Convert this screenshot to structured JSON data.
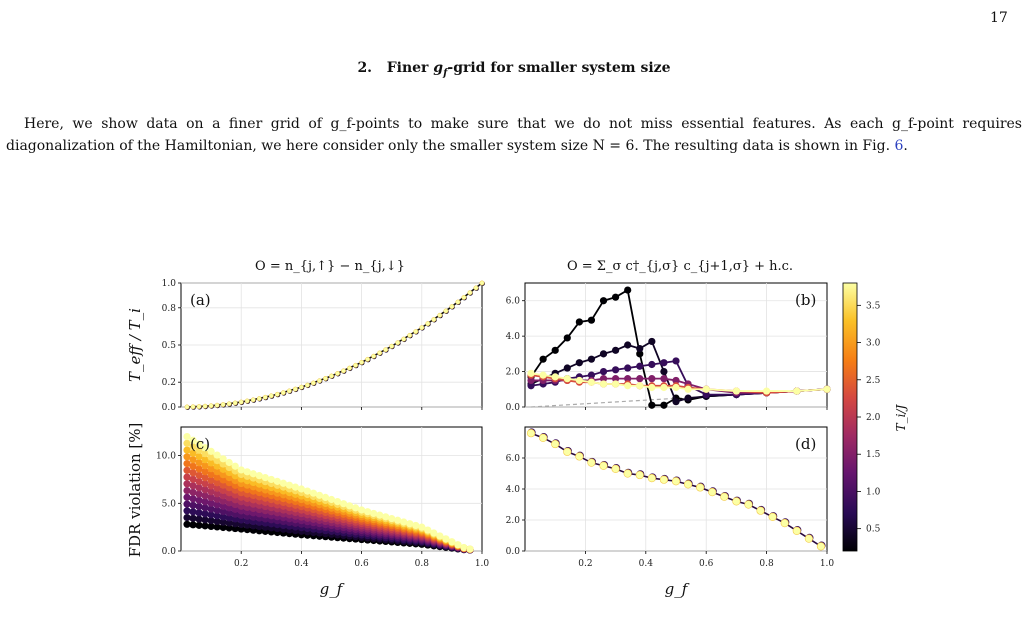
{
  "page_number": "17",
  "heading": {
    "number": "2.",
    "pre": "Finer ",
    "gf": "g",
    "gf_sub": "f",
    "post": "-grid for smaller system size"
  },
  "paragraph": {
    "before_link": "Here, we show data on a finer grid of g_f-points to make sure that we do not miss essential features. As each g_f-point requires diagonalization of the Hamiltonian, we here consider only the smaller system size N = 6. The resulting data is shown in Fig. ",
    "link": "6",
    "after_link": "."
  },
  "figure": {
    "col_titles": [
      "O = n_{j,↑} − n_{j,↓}",
      "O = Σ_σ c†_{j,σ} c_{j+1,σ} + h.c."
    ],
    "panel_labels": [
      "(a)",
      "(b)",
      "(c)",
      "(d)"
    ],
    "ylabel_top": "T_eff / T_i",
    "ylabel_bottom": "FDR violation [%]",
    "xlabel": "g_f",
    "colorbar_label": "T_i/J",
    "colorbar_ticks": [
      "3.5",
      "3.0",
      "2.5",
      "2.0",
      "1.5",
      "1.0",
      "0.5"
    ],
    "colormap": [
      "#000004",
      "#280b54",
      "#65156e",
      "#9f2a63",
      "#d44842",
      "#f57d15",
      "#fac127",
      "#fcffa4"
    ]
  },
  "chart_data": [
    {
      "panel": "(a)",
      "type": "scatter",
      "xlabel": "",
      "ylabel": "T_eff/T_i",
      "xlim": [
        0.0,
        1.0
      ],
      "ylim": [
        0.0,
        1.0
      ],
      "yticks": [
        "0.0",
        "0.2",
        "0.5",
        "0.8",
        "1.0"
      ],
      "series_note": "all T_i curves collapse",
      "x": [
        0.02,
        0.1,
        0.2,
        0.3,
        0.4,
        0.5,
        0.6,
        0.7,
        0.8,
        0.9,
        1.0
      ],
      "y": [
        0.0,
        0.01,
        0.04,
        0.09,
        0.16,
        0.25,
        0.36,
        0.49,
        0.64,
        0.81,
        1.0
      ]
    },
    {
      "panel": "(b)",
      "type": "line",
      "xlabel": "",
      "ylabel": "",
      "xlim": [
        0.0,
        1.0
      ],
      "ylim": [
        0.0,
        7.0
      ],
      "yticks": [
        "0.0",
        "2.0",
        "4.0",
        "6.0"
      ],
      "series": [
        {
          "Ti": 0.2,
          "x": [
            0.02,
            0.06,
            0.1,
            0.14,
            0.18,
            0.22,
            0.26,
            0.3,
            0.34,
            0.38,
            0.42,
            0.46,
            0.5,
            0.54,
            0.6,
            0.7,
            0.8,
            0.9,
            1.0
          ],
          "y": [
            1.7,
            2.7,
            3.2,
            3.9,
            4.8,
            4.9,
            6.0,
            6.2,
            6.6,
            3.0,
            0.1,
            0.1,
            0.5,
            0.4,
            0.6,
            0.7,
            0.8,
            0.9,
            1.0
          ]
        },
        {
          "Ti": 0.4,
          "x": [
            0.02,
            0.06,
            0.1,
            0.14,
            0.18,
            0.22,
            0.26,
            0.3,
            0.34,
            0.38,
            0.42,
            0.46,
            0.5,
            0.54,
            0.6,
            0.7,
            0.8,
            0.9,
            1.0
          ],
          "y": [
            1.3,
            1.6,
            1.9,
            2.2,
            2.5,
            2.7,
            3.0,
            3.2,
            3.5,
            3.3,
            3.7,
            2.0,
            0.3,
            0.5,
            0.6,
            0.7,
            0.8,
            0.9,
            1.0
          ]
        },
        {
          "Ti": 0.8,
          "x": [
            0.02,
            0.06,
            0.1,
            0.14,
            0.18,
            0.22,
            0.26,
            0.3,
            0.34,
            0.38,
            0.42,
            0.46,
            0.5,
            0.54,
            0.6,
            0.7,
            0.8,
            0.9,
            1.0
          ],
          "y": [
            1.2,
            1.3,
            1.4,
            1.6,
            1.7,
            1.8,
            2.0,
            2.1,
            2.2,
            2.3,
            2.4,
            2.5,
            2.6,
            1.2,
            0.7,
            0.7,
            0.8,
            0.9,
            1.0
          ]
        },
        {
          "Ti": 1.4,
          "x": [
            0.02,
            0.06,
            0.1,
            0.14,
            0.18,
            0.22,
            0.26,
            0.3,
            0.34,
            0.38,
            0.42,
            0.46,
            0.5,
            0.54,
            0.6,
            0.7,
            0.8,
            0.9,
            1.0
          ],
          "y": [
            1.5,
            1.5,
            1.5,
            1.5,
            1.5,
            1.5,
            1.6,
            1.6,
            1.6,
            1.6,
            1.6,
            1.6,
            1.5,
            1.3,
            1.0,
            0.8,
            0.8,
            0.9,
            1.0
          ]
        },
        {
          "Ti": 2.2,
          "x": [
            0.02,
            0.06,
            0.1,
            0.14,
            0.18,
            0.22,
            0.26,
            0.3,
            0.34,
            0.38,
            0.42,
            0.46,
            0.5,
            0.54,
            0.6,
            0.7,
            0.8,
            0.9,
            1.0
          ],
          "y": [
            1.8,
            1.7,
            1.6,
            1.5,
            1.4,
            1.4,
            1.3,
            1.3,
            1.3,
            1.2,
            1.2,
            1.2,
            1.2,
            1.1,
            1.0,
            0.9,
            0.8,
            0.9,
            1.0
          ]
        },
        {
          "Ti": 3.6,
          "x": [
            0.02,
            0.06,
            0.1,
            0.14,
            0.18,
            0.22,
            0.26,
            0.3,
            0.34,
            0.38,
            0.42,
            0.46,
            0.5,
            0.54,
            0.6,
            0.7,
            0.8,
            0.9,
            1.0
          ],
          "y": [
            1.9,
            1.8,
            1.7,
            1.6,
            1.5,
            1.4,
            1.3,
            1.3,
            1.2,
            1.2,
            1.1,
            1.1,
            1.1,
            1.0,
            1.0,
            0.9,
            0.9,
            0.9,
            1.0
          ]
        }
      ]
    },
    {
      "panel": "(c)",
      "type": "scatter",
      "xlabel": "g_f",
      "ylabel": "FDR violation [%]",
      "xlim": [
        0.0,
        1.0
      ],
      "ylim": [
        0.0,
        13.0
      ],
      "yticks": [
        "0.0",
        "5.0",
        "10.0"
      ],
      "xticks": [
        "0.2",
        "0.4",
        "0.6",
        "0.8",
        "1.0"
      ],
      "low_Ti": {
        "x": [
          0.02,
          0.2,
          0.4,
          0.6,
          0.8,
          0.95
        ],
        "y": [
          2.8,
          2.3,
          1.7,
          1.2,
          0.7,
          0.1
        ]
      },
      "high_Ti": {
        "x": [
          0.02,
          0.2,
          0.4,
          0.6,
          0.8,
          0.95
        ],
        "y": [
          12.0,
          8.5,
          6.5,
          4.3,
          2.5,
          0.2
        ]
      }
    },
    {
      "panel": "(d)",
      "type": "line",
      "xlabel": "g_f",
      "ylabel": "",
      "xlim": [
        0.0,
        1.0
      ],
      "ylim": [
        0.0,
        8.0
      ],
      "yticks": [
        "0.0",
        "2.0",
        "4.0",
        "6.0"
      ],
      "xticks": [
        "0.2",
        "0.4",
        "0.6",
        "0.8",
        "1.0"
      ],
      "x": [
        0.02,
        0.06,
        0.1,
        0.14,
        0.18,
        0.22,
        0.26,
        0.3,
        0.34,
        0.38,
        0.42,
        0.46,
        0.5,
        0.54,
        0.58,
        0.62,
        0.66,
        0.7,
        0.74,
        0.78,
        0.82,
        0.86,
        0.9,
        0.94,
        0.98
      ],
      "y": [
        7.6,
        7.3,
        6.9,
        6.4,
        6.1,
        5.7,
        5.5,
        5.3,
        5.0,
        4.9,
        4.7,
        4.6,
        4.5,
        4.3,
        4.1,
        3.8,
        3.5,
        3.2,
        3.0,
        2.6,
        2.2,
        1.8,
        1.3,
        0.8,
        0.3
      ]
    }
  ]
}
